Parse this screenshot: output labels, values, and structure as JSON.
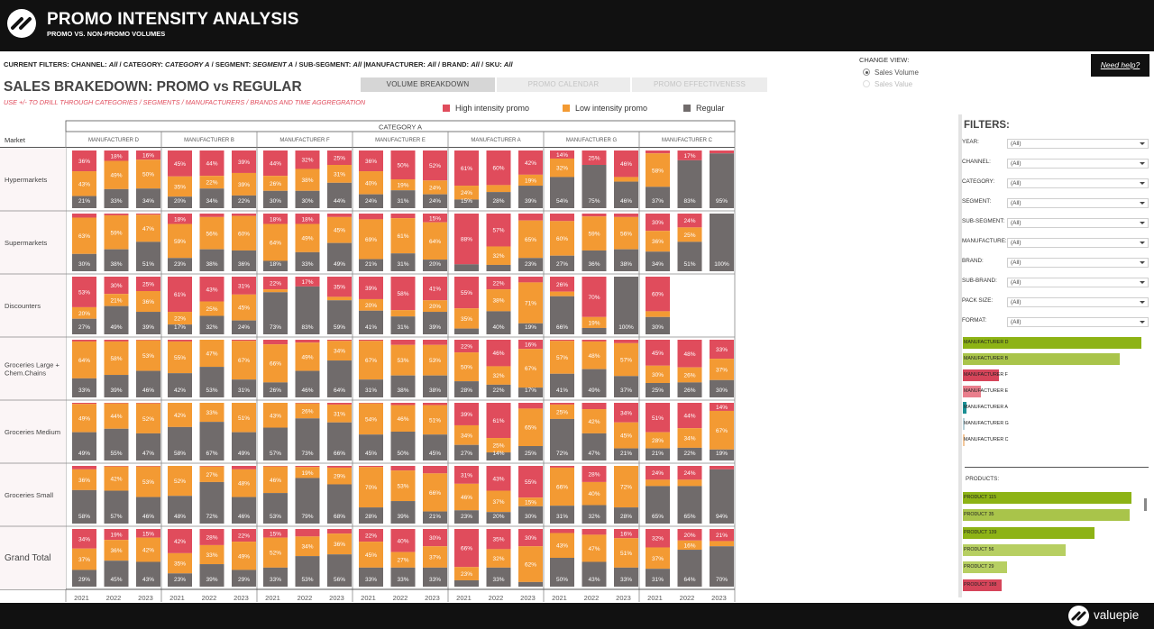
{
  "header": {
    "title": "PROMO INTENSITY ANALYSIS",
    "subtitle": "PROMO VS. NON-PROMO VOLUMES"
  },
  "filters_line": {
    "prefix": "CURRENT FILTERS: CHANNEL: ",
    "channel": "All",
    "s1": " / CATEGORY: ",
    "category": "CATEGORY A",
    "s2": " / SEGMENT: ",
    "segment": "SEGMENT A",
    "s3": " / SUB-SEGMENT: ",
    "sub_segment": "All",
    "s4": " |MANUFACTURER: ",
    "manufacturer": "All",
    "s5": " / BRAND: ",
    "brand": "All",
    "s6": " / SKU: ",
    "sku": "All"
  },
  "section": {
    "title": "SALES BRAKEDOWN: PROMO vs REGULAR",
    "hint": "USE +/- TO DRILL THROUGH CATEGORIES / SEGMENTS / MANUFACTURERS / BRANDS AND TIME AGGREGRATION"
  },
  "tabs": [
    {
      "label": "VOLUME BREAKDOWN",
      "active": true
    },
    {
      "label": "PROMO CALENDAR",
      "active": false
    },
    {
      "label": "PROMO EFFECTIVENESS",
      "active": false
    }
  ],
  "legend": [
    {
      "label": "High intensity promo",
      "color": "#e04c5c"
    },
    {
      "label": "Low intensity promo",
      "color": "#f39a33"
    },
    {
      "label": "Regular",
      "color": "#706b6b"
    }
  ],
  "change_view": {
    "label": "CHANGE VIEW:",
    "options": [
      {
        "label": "Sales Volume",
        "selected": true
      },
      {
        "label": "Sales Value",
        "selected": false
      }
    ]
  },
  "help": {
    "label": "Need help?"
  },
  "filters_panel": {
    "title": "FILTERS:",
    "items": [
      {
        "label": "YEAR:",
        "value": "(All)"
      },
      {
        "label": "CHANNEL:",
        "value": "(All)"
      },
      {
        "label": "CATEGORY:",
        "value": "(All)"
      },
      {
        "label": "SEGMENT:",
        "value": "(All)"
      },
      {
        "label": "SUB-SEGMENT:",
        "value": "(All)"
      },
      {
        "label": "MANUFACTURE:",
        "value": "(All)"
      },
      {
        "label": "BRAND:",
        "value": "(All)"
      },
      {
        "label": "SUB-BRAND:",
        "value": "(All)"
      },
      {
        "label": "PACK SIZE:",
        "value": "(All)"
      },
      {
        "label": "FORMAT:",
        "value": "(All)"
      }
    ],
    "manufacturers": [
      {
        "label": "MANUFACTURER D",
        "share": 1.0,
        "color": "#8db315"
      },
      {
        "label": "MANUFACTURER B",
        "share": 0.88,
        "color": "#a9c44a"
      },
      {
        "label": "MANUFACTURER F",
        "share": 0.2,
        "color": "#d6455a"
      },
      {
        "label": "MANUFACTURER E",
        "share": 0.1,
        "color": "#e97e8c"
      },
      {
        "label": "MANUFACTURER A",
        "share": 0.02,
        "color": "#1b8f94"
      },
      {
        "label": "MANUFACTURER G",
        "share": 0.004,
        "color": "#b7d0d8"
      },
      {
        "label": "MANUFACTURER C",
        "share": 0.004,
        "color": "#f3c79a"
      }
    ],
    "products_label": "PRODUCTS:",
    "products": [
      {
        "label": "PRODUCT 115",
        "share": 1.0,
        "color": "#8db315"
      },
      {
        "label": "PRODUCT 35",
        "share": 0.99,
        "color": "#a9c44a"
      },
      {
        "label": "PRODUCT 139",
        "share": 0.78,
        "color": "#8db315"
      },
      {
        "label": "PRODUCT 56",
        "share": 0.61,
        "color": "#b7cf62"
      },
      {
        "label": "PRODUCT 29",
        "share": 0.26,
        "color": "#b7cf62"
      },
      {
        "label": "PRODUCT 188",
        "share": 0.23,
        "color": "#d6455a"
      }
    ]
  },
  "footer": {
    "brand": "valuepie"
  },
  "chart_data": {
    "type": "bar",
    "title": "CATEGORY A",
    "row_header": "Market",
    "stacking": "100%",
    "series_order": [
      "High intensity promo",
      "Low intensity promo",
      "Regular"
    ],
    "years": [
      "2021",
      "2022",
      "2023"
    ],
    "manufacturers": [
      "MANUFACTURER D",
      "MANUFACTURER B",
      "MANUFACTURER F",
      "MANUFACTURER E",
      "MANUFACTURER A",
      "MANUFACTURER G",
      "MANUFACTURER C"
    ],
    "markets": [
      {
        "name": "Hypermarkets",
        "cells": [
          [
            [
              36,
              43,
              21
            ],
            [
              18,
              49,
              33
            ],
            [
              16,
              50,
              34
            ]
          ],
          [
            [
              45,
              35,
              20
            ],
            [
              44,
              22,
              34
            ],
            [
              39,
              39,
              22
            ]
          ],
          [
            [
              44,
              26,
              30
            ],
            [
              32,
              38,
              30
            ],
            [
              25,
              31,
              44
            ]
          ],
          [
            [
              36,
              40,
              24
            ],
            [
              50,
              19,
              31
            ],
            [
              52,
              24,
              24
            ]
          ],
          [
            [
              61,
              24,
              15
            ],
            [
              60,
              12,
              28
            ],
            [
              42,
              19,
              39
            ]
          ],
          [
            [
              14,
              32,
              54
            ],
            [
              25,
              0,
              75
            ],
            [
              46,
              8,
              46
            ]
          ],
          [
            [
              5,
              58,
              37
            ],
            [
              17,
              0,
              83
            ],
            [
              5,
              0,
              95
            ]
          ]
        ]
      },
      {
        "name": "Supermarkets",
        "cells": [
          [
            [
              7,
              63,
              30
            ],
            [
              3,
              59,
              38
            ],
            [
              2,
              47,
              51
            ]
          ],
          [
            [
              18,
              59,
              23
            ],
            [
              6,
              56,
              38
            ],
            [
              4,
              60,
              36
            ]
          ],
          [
            [
              18,
              64,
              18
            ],
            [
              18,
              49,
              33
            ],
            [
              6,
              45,
              49
            ]
          ],
          [
            [
              10,
              69,
              21
            ],
            [
              8,
              61,
              31
            ],
            [
              15,
              64,
              20
            ]
          ],
          [
            [
              88,
              0,
              12
            ],
            [
              57,
              32,
              11
            ],
            [
              12,
              65,
              23
            ]
          ],
          [
            [
              13,
              60,
              27
            ],
            [
              5,
              59,
              36
            ],
            [
              6,
              56,
              38
            ]
          ],
          [
            [
              30,
              36,
              34
            ],
            [
              24,
              25,
              51
            ],
            [
              0,
              0,
              100
            ]
          ]
        ]
      },
      {
        "name": "Discounters",
        "cells": [
          [
            [
              53,
              20,
              27
            ],
            [
              30,
              21,
              49
            ],
            [
              25,
              36,
              39
            ]
          ],
          [
            [
              61,
              22,
              17
            ],
            [
              43,
              25,
              32
            ],
            [
              31,
              45,
              24
            ]
          ],
          [
            [
              22,
              5,
              73
            ],
            [
              17,
              0,
              83
            ],
            [
              35,
              6,
              59
            ]
          ],
          [
            [
              39,
              20,
              41
            ],
            [
              58,
              11,
              31
            ],
            [
              41,
              20,
              39
            ]
          ],
          [
            [
              55,
              35,
              10
            ],
            [
              22,
              38,
              40
            ],
            [
              10,
              71,
              19
            ]
          ],
          [
            [
              26,
              8,
              66
            ],
            [
              70,
              19,
              11
            ],
            [
              0,
              0,
              100
            ]
          ],
          [
            [
              60,
              10,
              30
            ],
            null,
            null
          ]
        ]
      },
      {
        "name": "Groceries Large +\nChem.Chains",
        "cells": [
          [
            [
              3,
              64,
              33
            ],
            [
              3,
              58,
              39
            ],
            [
              1,
              53,
              46
            ]
          ],
          [
            [
              3,
              55,
              42
            ],
            [
              0,
              47,
              53
            ],
            [
              2,
              67,
              31
            ]
          ],
          [
            [
              8,
              66,
              26
            ],
            [
              5,
              49,
              46
            ],
            [
              2,
              34,
              64
            ]
          ],
          [
            [
              2,
              67,
              31
            ],
            [
              9,
              53,
              38
            ],
            [
              9,
              53,
              38
            ]
          ],
          [
            [
              22,
              50,
              28
            ],
            [
              46,
              32,
              22
            ],
            [
              16,
              67,
              17
            ]
          ],
          [
            [
              2,
              57,
              41
            ],
            [
              3,
              48,
              49
            ],
            [
              6,
              57,
              37
            ]
          ],
          [
            [
              45,
              30,
              25
            ],
            [
              48,
              26,
              26
            ],
            [
              33,
              37,
              30
            ]
          ]
        ]
      },
      {
        "name": "Groceries Medium",
        "cells": [
          [
            [
              2,
              49,
              49
            ],
            [
              1,
              44,
              55
            ],
            [
              1,
              52,
              47
            ]
          ],
          [
            [
              0,
              42,
              58
            ],
            [
              0,
              33,
              67
            ],
            [
              0,
              51,
              49
            ]
          ],
          [
            [
              0,
              43,
              57
            ],
            [
              1,
              26,
              73
            ],
            [
              3,
              31,
              66
            ]
          ],
          [
            [
              1,
              54,
              45
            ],
            [
              4,
              46,
              50
            ],
            [
              4,
              51,
              45
            ]
          ],
          [
            [
              39,
              34,
              27
            ],
            [
              61,
              25,
              14
            ],
            [
              10,
              65,
              25
            ]
          ],
          [
            [
              3,
              25,
              72
            ],
            [
              11,
              42,
              47
            ],
            [
              34,
              45,
              21
            ]
          ],
          [
            [
              51,
              28,
              21
            ],
            [
              44,
              34,
              22
            ],
            [
              14,
              67,
              19
            ]
          ]
        ]
      },
      {
        "name": "Groceries Small",
        "cells": [
          [
            [
              6,
              36,
              58
            ],
            [
              1,
              42,
              57
            ],
            [
              1,
              53,
              46
            ]
          ],
          [
            [
              0,
              52,
              48
            ],
            [
              1,
              27,
              72
            ],
            [
              6,
              48,
              46
            ]
          ],
          [
            [
              1,
              46,
              53
            ],
            [
              2,
              19,
              79
            ],
            [
              3,
              29,
              68
            ]
          ],
          [
            [
              2,
              70,
              28
            ],
            [
              8,
              53,
              39
            ],
            [
              13,
              66,
              21
            ]
          ],
          [
            [
              31,
              46,
              23
            ],
            [
              43,
              37,
              20
            ],
            [
              55,
              15,
              30
            ]
          ],
          [
            [
              3,
              66,
              31
            ],
            [
              28,
              40,
              32
            ],
            [
              0,
              72,
              28
            ]
          ],
          [
            [
              24,
              11,
              65
            ],
            [
              24,
              11,
              65
            ],
            [
              6,
              0,
              94
            ]
          ]
        ]
      },
      {
        "name": "Grand Total",
        "cells": [
          [
            [
              34,
              37,
              29
            ],
            [
              19,
              36,
              45
            ],
            [
              15,
              42,
              43
            ]
          ],
          [
            [
              42,
              35,
              23
            ],
            [
              28,
              33,
              39
            ],
            [
              22,
              49,
              29
            ]
          ],
          [
            [
              15,
              52,
              33
            ],
            [
              13,
              34,
              53
            ],
            [
              8,
              36,
              56
            ]
          ],
          [
            [
              22,
              45,
              33
            ],
            [
              40,
              27,
              33
            ],
            [
              30,
              37,
              33
            ]
          ],
          [
            [
              66,
              23,
              11
            ],
            [
              35,
              32,
              33
            ],
            [
              30,
              62,
              8
            ]
          ],
          [
            [
              7,
              43,
              50
            ],
            [
              10,
              47,
              43
            ],
            [
              16,
              51,
              33
            ]
          ],
          [
            [
              32,
              37,
              31
            ],
            [
              20,
              16,
              64
            ],
            [
              21,
              9,
              70
            ]
          ]
        ]
      }
    ]
  }
}
